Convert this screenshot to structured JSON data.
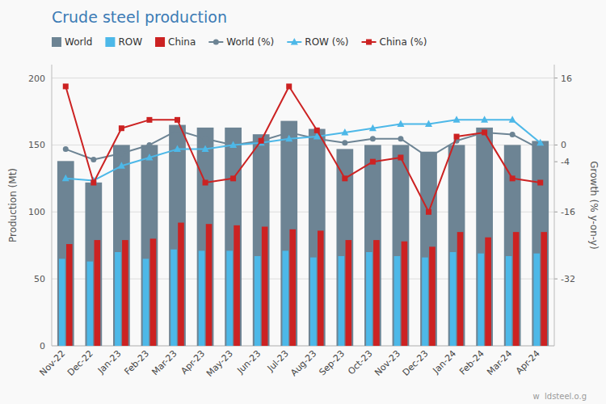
{
  "chart_data": {
    "type": "bar",
    "title": "Crude steel production",
    "y_label": "Production (Mt)",
    "y2_label": "Growth (% y-on-y)",
    "annotations": [
      "w  ldsteel.o.g"
    ],
    "categories": [
      "Nov-22",
      "Dec-22",
      "Jan-23",
      "Feb-23",
      "Mar-23",
      "Apr-23",
      "May-23",
      "Jun-23",
      "Jul-23",
      "Aug-23",
      "Sep-23",
      "Oct-23",
      "Nov-23",
      "Dec-23",
      "Jan-24",
      "Feb-24",
      "Mar-24",
      "Apr-24"
    ],
    "series": [
      {
        "name": "World",
        "type": "bar",
        "color": "#6d8494",
        "values": [
          138,
          122,
          150,
          150,
          165,
          163,
          163,
          158,
          168,
          162,
          147,
          150,
          150,
          145,
          150,
          163,
          150,
          153
        ]
      },
      {
        "name": "ROW",
        "type": "bar",
        "color": "#4db8e8",
        "values": [
          65,
          63,
          70,
          65,
          72,
          71,
          71,
          67,
          71,
          66,
          67,
          70,
          67,
          66,
          70,
          69,
          67,
          69
        ]
      },
      {
        "name": "China",
        "type": "bar",
        "color": "#cc2222",
        "values": [
          76,
          79,
          79,
          80,
          92,
          91,
          90,
          89,
          87,
          86,
          79,
          79,
          78,
          74,
          85,
          81,
          85,
          85
        ]
      },
      {
        "name": "World (%)",
        "type": "line",
        "axis": "y2",
        "color": "#6d8494",
        "marker": "circle",
        "values": [
          -1,
          -3.5,
          -2,
          0,
          3.5,
          1.5,
          0,
          1,
          3,
          1.5,
          0.5,
          1.5,
          1.5,
          -3,
          1,
          3,
          2.5,
          -1
        ]
      },
      {
        "name": "ROW (%)",
        "type": "line",
        "axis": "y2",
        "color": "#4db8e8",
        "marker": "triangle",
        "values": [
          -8,
          -8.5,
          -5,
          -3,
          -1,
          -1,
          0,
          0.5,
          1.5,
          2,
          3,
          4,
          5,
          5,
          6,
          6,
          6,
          0.5
        ]
      },
      {
        "name": "China (%)",
        "type": "line",
        "axis": "y2",
        "color": "#cc2222",
        "marker": "square",
        "values": [
          14,
          -9,
          4,
          6,
          6,
          -9,
          -8,
          1,
          14,
          3.5,
          -8,
          -4,
          -3,
          -16,
          2,
          3,
          -8,
          -9
        ]
      }
    ],
    "ylim": [
      0,
      210
    ],
    "yticks": [
      0,
      50,
      100,
      150,
      200
    ],
    "y2lim": [
      -48,
      19.2
    ],
    "y2ticks": [
      -32,
      -16,
      0,
      16,
      {
        "value": -4,
        "label": "-4 "
      }
    ],
    "grid": true,
    "legend": "top"
  }
}
